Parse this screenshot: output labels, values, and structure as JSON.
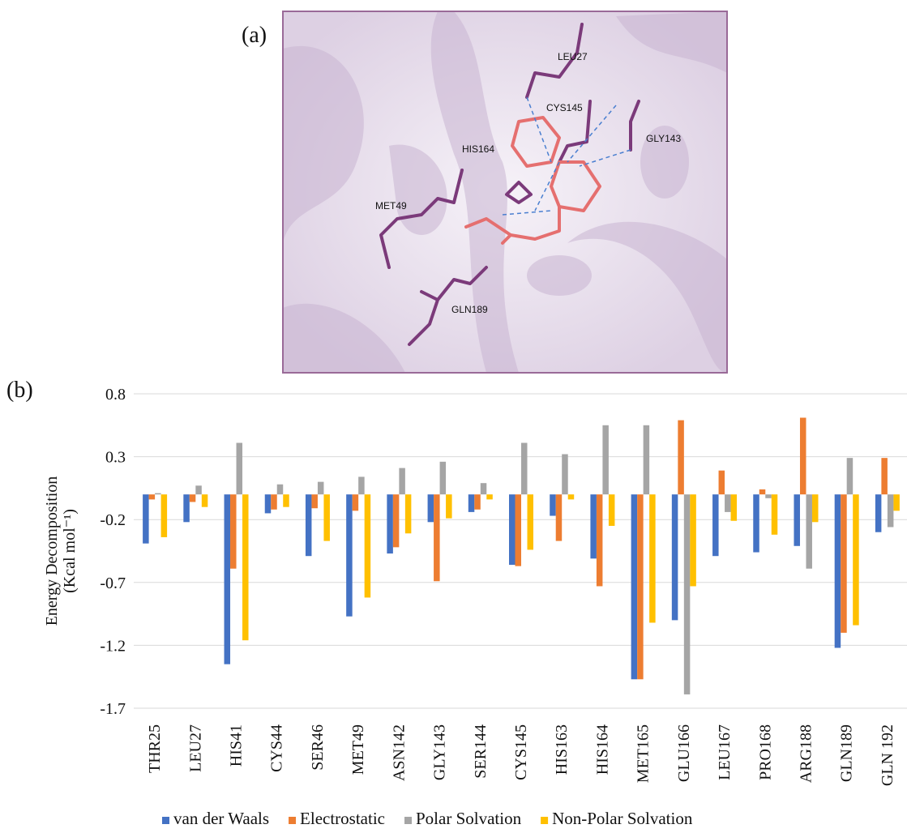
{
  "panel_a": {
    "label": "(a)",
    "residues": [
      "LEU27",
      "CYS145",
      "GLY143",
      "HIS164",
      "MET49",
      "GLN189"
    ]
  },
  "chart_data": {
    "type": "bar",
    "panel_label": "(b)",
    "ylabel": [
      "Energy Decomposition",
      "(Kcal mol⁻¹)"
    ],
    "categories": [
      "THR25",
      "LEU27",
      "HIS41",
      "CYS44",
      "SER46",
      "MET49",
      "ASN142",
      "GLY143",
      "SER144",
      "CYS145",
      "HIS163",
      "HIS164",
      "MET165",
      "GLU166",
      "LEU167",
      "PRO168",
      "ARG188",
      "GLN189",
      "GLN 192"
    ],
    "series": [
      {
        "name": "van der Waals",
        "color": "#4472c4",
        "values": [
          -0.39,
          -0.22,
          -1.35,
          -0.15,
          -0.49,
          -0.97,
          -0.47,
          -0.22,
          -0.14,
          -0.56,
          -0.17,
          -0.51,
          -1.47,
          -1.0,
          -0.49,
          -0.46,
          -0.41,
          -1.22,
          -0.3
        ]
      },
      {
        "name": "Electrostatic",
        "color": "#ed7d31",
        "values": [
          -0.04,
          -0.06,
          -0.59,
          -0.12,
          -0.11,
          -0.13,
          -0.42,
          -0.69,
          -0.12,
          -0.57,
          -0.37,
          -0.73,
          -1.47,
          0.59,
          0.19,
          0.04,
          0.61,
          -1.1,
          0.29
        ]
      },
      {
        "name": "Polar Solvation",
        "color": "#a5a5a5",
        "values": [
          0.01,
          0.07,
          0.41,
          0.08,
          0.1,
          0.14,
          0.21,
          0.26,
          0.09,
          0.41,
          0.32,
          0.55,
          0.55,
          -1.59,
          -0.14,
          -0.03,
          -0.59,
          0.29,
          -0.26
        ]
      },
      {
        "name": "Non-Polar Solvation",
        "color": "#ffc000",
        "values": [
          -0.34,
          -0.1,
          -1.16,
          -0.1,
          -0.37,
          -0.82,
          -0.31,
          -0.19,
          -0.04,
          -0.44,
          -0.04,
          -0.25,
          -1.02,
          -0.73,
          -0.21,
          -0.32,
          -0.22,
          -1.04,
          -0.13
        ]
      }
    ],
    "ylim": [
      -1.7,
      0.8
    ],
    "yticks": [
      -1.7,
      -1.2,
      -0.7,
      -0.2,
      0.3,
      0.8
    ],
    "grid": true,
    "legend": "bottom"
  }
}
